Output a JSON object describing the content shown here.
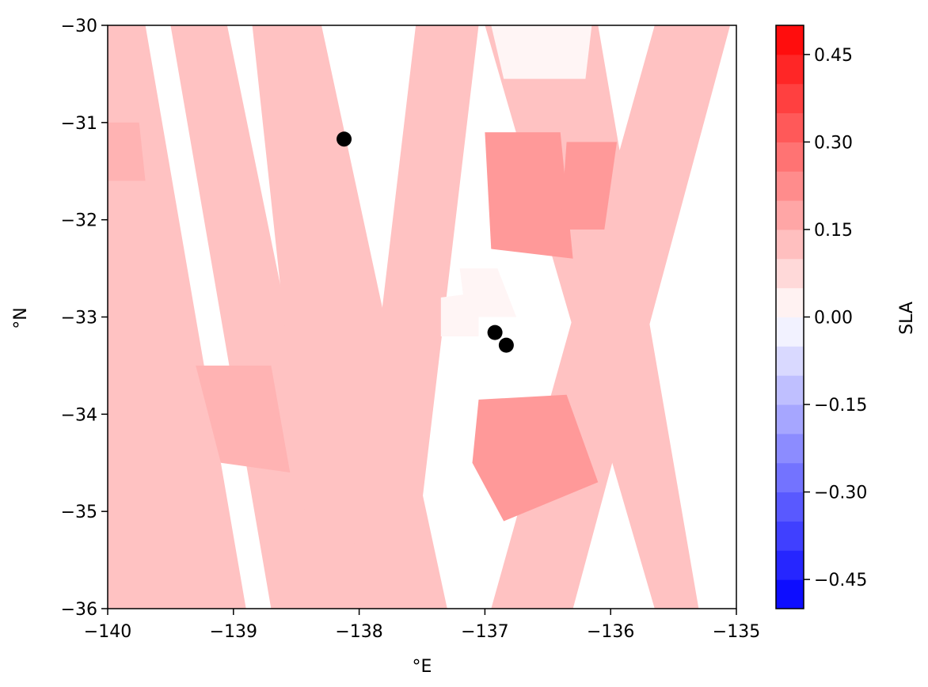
{
  "chart_data": {
    "type": "heatmap",
    "title": "",
    "xlabel": "°E",
    "ylabel": "°N",
    "xlim": [
      -140,
      -135
    ],
    "ylim": [
      -36,
      -30
    ],
    "xticks": [
      -140,
      -139,
      -138,
      -137,
      -136,
      -135
    ],
    "xtick_labels": [
      "−140",
      "−139",
      "−138",
      "−137",
      "−136",
      "−135"
    ],
    "yticks": [
      -30,
      -31,
      -32,
      -33,
      -34,
      -35,
      -36
    ],
    "ytick_labels": [
      "−30",
      "−31",
      "−32",
      "−33",
      "−34",
      "−35",
      "−36"
    ],
    "swaths": [
      {
        "polygon": [
          [
            -140.0,
            -30.0
          ],
          [
            -139.7,
            -30.0
          ],
          [
            -138.9,
            -36.0
          ],
          [
            -140.0,
            -36.0
          ]
        ]
      },
      {
        "polygon": [
          [
            -139.5,
            -30.0
          ],
          [
            -139.05,
            -30.0
          ],
          [
            -138.1,
            -36.0
          ],
          [
            -138.7,
            -36.0
          ]
        ]
      },
      {
        "polygon": [
          [
            -138.85,
            -30.0
          ],
          [
            -138.3,
            -30.0
          ],
          [
            -137.3,
            -36.0
          ],
          [
            -138.35,
            -36.0
          ]
        ]
      },
      {
        "polygon": [
          [
            -137.55,
            -30.0
          ],
          [
            -137.05,
            -30.0
          ],
          [
            -137.6,
            -36.0
          ],
          [
            -138.1,
            -36.0
          ]
        ]
      },
      {
        "polygon": [
          [
            -137.0,
            -30.0
          ],
          [
            -136.1,
            -30.0
          ],
          [
            -135.3,
            -36.0
          ],
          [
            -135.65,
            -36.0
          ]
        ]
      },
      {
        "polygon": [
          [
            -135.65,
            -30.0
          ],
          [
            -135.05,
            -30.0
          ],
          [
            -136.3,
            -36.0
          ],
          [
            -136.95,
            -36.0
          ]
        ]
      }
    ],
    "sla_regions": [
      {
        "polygon": [
          [
            -140.0,
            -31.0
          ],
          [
            -139.75,
            -31.0
          ],
          [
            -139.7,
            -31.6
          ],
          [
            -140.0,
            -31.6
          ]
        ],
        "value": 0.15
      },
      {
        "polygon": [
          [
            -137.0,
            -31.1
          ],
          [
            -136.4,
            -31.1
          ],
          [
            -136.3,
            -32.4
          ],
          [
            -136.95,
            -32.3
          ]
        ],
        "value": 0.2
      },
      {
        "polygon": [
          [
            -136.35,
            -31.2
          ],
          [
            -135.95,
            -31.2
          ],
          [
            -136.05,
            -32.1
          ],
          [
            -136.4,
            -32.1
          ]
        ],
        "value": 0.2
      },
      {
        "polygon": [
          [
            -137.05,
            -33.85
          ],
          [
            -136.35,
            -33.8
          ],
          [
            -136.1,
            -34.7
          ],
          [
            -136.85,
            -35.1
          ],
          [
            -137.1,
            -34.5
          ]
        ],
        "value": 0.2
      },
      {
        "polygon": [
          [
            -139.3,
            -33.5
          ],
          [
            -138.7,
            -33.5
          ],
          [
            -138.55,
            -34.6
          ],
          [
            -139.1,
            -34.5
          ]
        ],
        "value": 0.15
      },
      {
        "polygon": [
          [
            -137.2,
            -32.5
          ],
          [
            -136.9,
            -32.5
          ],
          [
            -136.75,
            -33.0
          ],
          [
            -137.15,
            -33.0
          ]
        ],
        "value": 0.02
      },
      {
        "polygon": [
          [
            -137.35,
            -32.8
          ],
          [
            -137.05,
            -32.75
          ],
          [
            -137.05,
            -33.2
          ],
          [
            -137.35,
            -33.2
          ]
        ],
        "value": 0.02
      },
      {
        "polygon": [
          [
            -136.95,
            -30.0
          ],
          [
            -136.15,
            -30.0
          ],
          [
            -136.2,
            -30.55
          ],
          [
            -136.85,
            -30.55
          ]
        ],
        "value": 0.02
      }
    ],
    "points": [
      {
        "x": -138.12,
        "y": -31.17
      },
      {
        "x": -136.92,
        "y": -33.16
      },
      {
        "x": -136.83,
        "y": -33.29
      }
    ],
    "colorbar": {
      "label": "SLA",
      "vmin": -0.5,
      "vmax": 0.5,
      "levels": 20,
      "colors": {
        "low": "#0000ff",
        "mid": "#ffffff",
        "high": "#ff0000"
      },
      "ticks": [
        0.45,
        0.3,
        0.15,
        0.0,
        -0.15,
        -0.3,
        -0.45
      ],
      "tick_labels": [
        "0.45",
        "0.30",
        "0.15",
        "0.00",
        "−0.15",
        "−0.30",
        "−0.45"
      ]
    }
  }
}
